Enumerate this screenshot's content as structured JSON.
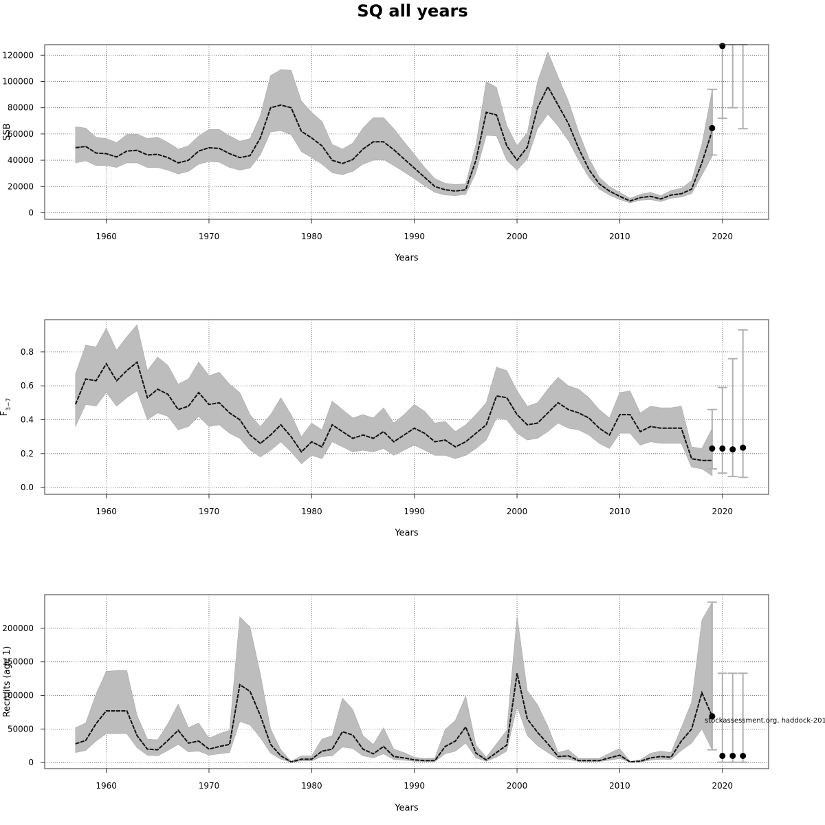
{
  "title": "SQ all years",
  "footnote": "stockassessment.org, haddock-201",
  "chart_data": [
    {
      "type": "line",
      "ylabel": "SSB",
      "xlabel": "Years",
      "xlim": [
        1954,
        2024.5
      ],
      "ylim": [
        -5000,
        128000
      ],
      "xticks": [
        1960,
        1970,
        1980,
        1990,
        2000,
        2010,
        2020
      ],
      "yticks": [
        0,
        20000,
        40000,
        60000,
        80000,
        100000,
        120000
      ],
      "ytick_labels": [
        "0",
        "20000",
        "40000",
        "60000",
        "80000",
        "100000",
        "120000"
      ],
      "grid": true,
      "x": [
        1957,
        1958,
        1959,
        1960,
        1961,
        1962,
        1963,
        1964,
        1965,
        1966,
        1967,
        1968,
        1969,
        1970,
        1971,
        1972,
        1973,
        1974,
        1975,
        1976,
        1977,
        1978,
        1979,
        1980,
        1981,
        1982,
        1983,
        1984,
        1985,
        1986,
        1987,
        1988,
        1989,
        1990,
        1991,
        1992,
        1993,
        1994,
        1995,
        1996,
        1997,
        1998,
        1999,
        2000,
        2001,
        2002,
        2003,
        2004,
        2005,
        2006,
        2007,
        2008,
        2009,
        2010,
        2011,
        2012,
        2013,
        2014,
        2015,
        2016,
        2017,
        2018,
        2019
      ],
      "estimate": [
        49500,
        50500,
        45500,
        45000,
        42500,
        47000,
        47500,
        44000,
        44500,
        42000,
        38000,
        40000,
        47000,
        49500,
        49000,
        45000,
        42000,
        43500,
        57000,
        80000,
        82000,
        80000,
        62000,
        57000,
        51000,
        40000,
        37500,
        40500,
        48500,
        54000,
        54000,
        48000,
        41000,
        34000,
        27000,
        20000,
        17500,
        16500,
        17500,
        40000,
        76500,
        74500,
        51000,
        40000,
        50000,
        80000,
        96000,
        82000,
        68000,
        49000,
        33000,
        22000,
        16500,
        12500,
        9000,
        11500,
        12500,
        10500,
        13500,
        14500,
        18000,
        38000,
        62500
      ],
      "upper": [
        65500,
        64500,
        57500,
        56500,
        53500,
        59500,
        60000,
        56500,
        57500,
        53500,
        48500,
        51000,
        58500,
        63500,
        63500,
        58500,
        54500,
        56500,
        74000,
        104500,
        109000,
        108500,
        85000,
        76500,
        69500,
        52000,
        48500,
        53000,
        64500,
        72500,
        72500,
        64000,
        54000,
        44500,
        34500,
        26000,
        22500,
        21500,
        22000,
        52000,
        100000,
        95500,
        66500,
        51000,
        61000,
        100000,
        122500,
        103500,
        85000,
        61500,
        41500,
        27000,
        20000,
        15500,
        11000,
        14000,
        15500,
        13000,
        17000,
        18500,
        24500,
        52000,
        93500
      ],
      "lower": [
        38000,
        39500,
        36000,
        36000,
        34500,
        38000,
        38000,
        34500,
        34500,
        32500,
        29500,
        31500,
        37000,
        39000,
        38500,
        34500,
        32500,
        34000,
        44000,
        61500,
        62500,
        59500,
        46500,
        42000,
        37000,
        30500,
        29000,
        31500,
        37000,
        40000,
        40500,
        36000,
        31000,
        26000,
        20500,
        15500,
        13500,
        13000,
        14000,
        30500,
        59000,
        58500,
        40000,
        32500,
        41000,
        64000,
        75000,
        66000,
        55000,
        40000,
        27000,
        18000,
        13500,
        10000,
        7500,
        9500,
        10000,
        8500,
        11000,
        12000,
        14500,
        28500,
        43000
      ],
      "forecast_points": [
        {
          "x": 2019,
          "y": 64500
        },
        {
          "x": 2020,
          "y": 127000
        }
      ],
      "forecast_intervals": [
        {
          "x": 2019,
          "low": 44000,
          "high": 94000
        },
        {
          "x": 2020,
          "low": 72000,
          "high": 128000
        },
        {
          "x": 2021,
          "low": 80000,
          "high": 128000
        },
        {
          "x": 2022,
          "low": 64000,
          "high": 128000
        }
      ]
    },
    {
      "type": "line",
      "ylabel": "F",
      "ylabel_sub": "3−7",
      "xlabel": "Years",
      "xlim": [
        1954,
        2024.5
      ],
      "ylim": [
        -0.04,
        0.99
      ],
      "xticks": [
        1960,
        1970,
        1980,
        1990,
        2000,
        2010,
        2020
      ],
      "yticks": [
        0.0,
        0.2,
        0.4,
        0.6,
        0.8
      ],
      "ytick_labels": [
        "0.0",
        "0.2",
        "0.4",
        "0.6",
        "0.8"
      ],
      "grid": true,
      "x": [
        1957,
        1958,
        1959,
        1960,
        1961,
        1962,
        1963,
        1964,
        1965,
        1966,
        1967,
        1968,
        1969,
        1970,
        1971,
        1972,
        1973,
        1974,
        1975,
        1976,
        1977,
        1978,
        1979,
        1980,
        1981,
        1982,
        1983,
        1984,
        1985,
        1986,
        1987,
        1988,
        1989,
        1990,
        1991,
        1992,
        1993,
        1994,
        1995,
        1996,
        1997,
        1998,
        1999,
        2000,
        2001,
        2002,
        2003,
        2004,
        2005,
        2006,
        2007,
        2008,
        2009,
        2010,
        2011,
        2012,
        2013,
        2014,
        2015,
        2016,
        2017,
        2018,
        2019
      ],
      "estimate": [
        0.49,
        0.64,
        0.63,
        0.73,
        0.63,
        0.69,
        0.74,
        0.53,
        0.58,
        0.55,
        0.46,
        0.48,
        0.56,
        0.49,
        0.5,
        0.44,
        0.4,
        0.31,
        0.26,
        0.31,
        0.37,
        0.3,
        0.21,
        0.27,
        0.24,
        0.37,
        0.33,
        0.29,
        0.31,
        0.29,
        0.33,
        0.27,
        0.31,
        0.35,
        0.32,
        0.27,
        0.28,
        0.24,
        0.27,
        0.32,
        0.37,
        0.54,
        0.53,
        0.43,
        0.37,
        0.38,
        0.44,
        0.5,
        0.46,
        0.44,
        0.41,
        0.35,
        0.31,
        0.43,
        0.43,
        0.33,
        0.36,
        0.35,
        0.35,
        0.35,
        0.17,
        0.16,
        0.16
      ],
      "upper": [
        0.67,
        0.84,
        0.83,
        0.94,
        0.81,
        0.89,
        0.96,
        0.69,
        0.77,
        0.72,
        0.61,
        0.64,
        0.74,
        0.66,
        0.68,
        0.61,
        0.56,
        0.43,
        0.36,
        0.43,
        0.53,
        0.43,
        0.3,
        0.38,
        0.34,
        0.51,
        0.46,
        0.41,
        0.43,
        0.41,
        0.47,
        0.38,
        0.43,
        0.49,
        0.45,
        0.38,
        0.39,
        0.33,
        0.37,
        0.43,
        0.5,
        0.71,
        0.69,
        0.57,
        0.48,
        0.5,
        0.58,
        0.65,
        0.6,
        0.58,
        0.53,
        0.46,
        0.41,
        0.56,
        0.57,
        0.44,
        0.48,
        0.47,
        0.47,
        0.48,
        0.24,
        0.23,
        0.35
      ],
      "lower": [
        0.36,
        0.49,
        0.48,
        0.56,
        0.48,
        0.53,
        0.57,
        0.4,
        0.44,
        0.42,
        0.34,
        0.36,
        0.42,
        0.36,
        0.37,
        0.32,
        0.29,
        0.22,
        0.18,
        0.22,
        0.27,
        0.21,
        0.14,
        0.19,
        0.17,
        0.27,
        0.24,
        0.21,
        0.22,
        0.21,
        0.23,
        0.19,
        0.22,
        0.25,
        0.22,
        0.19,
        0.19,
        0.17,
        0.19,
        0.23,
        0.28,
        0.41,
        0.4,
        0.32,
        0.28,
        0.29,
        0.33,
        0.38,
        0.35,
        0.34,
        0.31,
        0.26,
        0.23,
        0.32,
        0.32,
        0.25,
        0.27,
        0.26,
        0.26,
        0.26,
        0.12,
        0.11,
        0.07
      ],
      "forecast_points": [
        {
          "x": 2019,
          "y": 0.23
        },
        {
          "x": 2020,
          "y": 0.23
        },
        {
          "x": 2021,
          "y": 0.225
        },
        {
          "x": 2022,
          "y": 0.235
        }
      ],
      "forecast_intervals": [
        {
          "x": 2019,
          "low": 0.11,
          "high": 0.46
        },
        {
          "x": 2020,
          "low": 0.085,
          "high": 0.59
        },
        {
          "x": 2021,
          "low": 0.065,
          "high": 0.76
        },
        {
          "x": 2022,
          "low": 0.06,
          "high": 0.93
        }
      ]
    },
    {
      "type": "line",
      "ylabel": "Recruits (age 1)",
      "xlabel": "Years",
      "xlim": [
        1954,
        2024.5
      ],
      "ylim": [
        -9000,
        250000
      ],
      "xticks": [
        1960,
        1970,
        1980,
        1990,
        2000,
        2010,
        2020
      ],
      "yticks": [
        0,
        50000,
        100000,
        150000,
        200000
      ],
      "ytick_labels": [
        "0",
        "50000",
        "100000",
        "150000",
        "200000"
      ],
      "grid": true,
      "x": [
        1957,
        1958,
        1959,
        1960,
        1961,
        1962,
        1963,
        1964,
        1965,
        1966,
        1967,
        1968,
        1969,
        1970,
        1971,
        1972,
        1973,
        1974,
        1975,
        1976,
        1977,
        1978,
        1979,
        1980,
        1981,
        1982,
        1983,
        1984,
        1985,
        1986,
        1987,
        1988,
        1989,
        1990,
        1991,
        1992,
        1993,
        1994,
        1995,
        1996,
        1997,
        1998,
        1999,
        2000,
        2001,
        2002,
        2003,
        2004,
        2005,
        2006,
        2007,
        2008,
        2009,
        2010,
        2011,
        2012,
        2013,
        2014,
        2015,
        2016,
        2017,
        2018,
        2019
      ],
      "estimate": [
        28000,
        33000,
        58000,
        77000,
        77000,
        77000,
        40000,
        20000,
        19000,
        33000,
        48000,
        29000,
        32000,
        20000,
        24000,
        27000,
        116000,
        106000,
        70000,
        27000,
        10000,
        1000,
        5000,
        5000,
        17000,
        20000,
        46000,
        41000,
        20000,
        13000,
        24000,
        9000,
        7000,
        4000,
        3000,
        3000,
        24000,
        32000,
        53000,
        14000,
        4000,
        15000,
        26000,
        133000,
        65000,
        45000,
        28000,
        9000,
        10000,
        3000,
        3000,
        3000,
        7000,
        11000,
        1000,
        2000,
        7000,
        9000,
        8000,
        32000,
        50000,
        104000,
        69000
      ],
      "upper": [
        52000,
        59000,
        102000,
        136000,
        137000,
        137000,
        70000,
        35000,
        34000,
        58000,
        87000,
        52000,
        59000,
        36000,
        43000,
        48000,
        217000,
        202000,
        132000,
        50000,
        19000,
        2000,
        10000,
        10000,
        35000,
        40000,
        96000,
        79000,
        40000,
        27000,
        52000,
        20000,
        15000,
        8000,
        6000,
        7000,
        49000,
        63000,
        99000,
        26000,
        8000,
        28000,
        48000,
        218000,
        107000,
        86000,
        54000,
        15000,
        19000,
        6000,
        6000,
        6000,
        14000,
        21000,
        2000,
        4000,
        14000,
        17000,
        15000,
        52000,
        90000,
        212000,
        239000
      ],
      "lower": [
        15000,
        18000,
        32000,
        43000,
        43000,
        43000,
        22000,
        11000,
        10000,
        18000,
        27000,
        16000,
        17000,
        11000,
        13000,
        15000,
        61000,
        56000,
        37000,
        14000,
        5000,
        500,
        2500,
        2500,
        9000,
        10000,
        23000,
        21000,
        10000,
        7000,
        13000,
        4500,
        3500,
        2000,
        1500,
        1500,
        13000,
        17000,
        29000,
        7000,
        2000,
        8000,
        17000,
        84000,
        40000,
        25000,
        15000,
        5000,
        5000,
        1500,
        1500,
        1500,
        3500,
        6000,
        500,
        1000,
        3500,
        5000,
        4500,
        18000,
        29000,
        50000,
        19000
      ],
      "forecast_points": [
        {
          "x": 2019,
          "y": 69000
        },
        {
          "x": 2020,
          "y": 10000
        },
        {
          "x": 2021,
          "y": 10000
        },
        {
          "x": 2022,
          "y": 10000
        }
      ],
      "forecast_intervals": [
        {
          "x": 2019,
          "low": 19000,
          "high": 239000
        },
        {
          "x": 2020,
          "low": 500,
          "high": 133000
        },
        {
          "x": 2021,
          "low": 500,
          "high": 133000
        },
        {
          "x": 2022,
          "low": 500,
          "high": 133000
        }
      ]
    }
  ]
}
